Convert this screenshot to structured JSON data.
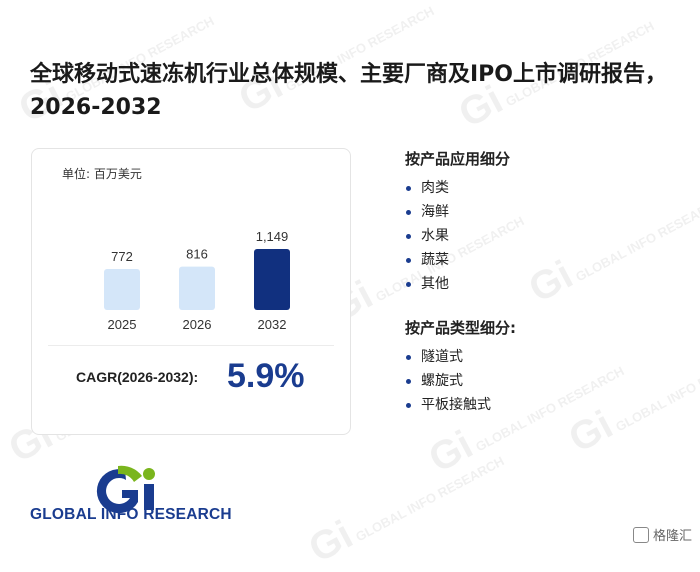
{
  "title": "全球移动式速冻机行业总体规模、主要厂商及IPO上市调研报告，2026-2032",
  "card": {
    "unit": "单位: 百万美元",
    "cagr_label": "CAGR(2026-2032):",
    "cagr_value": "5.9%"
  },
  "chart_data": {
    "type": "bar",
    "categories": [
      "2025",
      "2026",
      "2032"
    ],
    "values": [
      772,
      816,
      1149
    ],
    "value_labels": [
      "772",
      "816",
      "1,149"
    ],
    "highlight_index": 2,
    "colors": {
      "normal": "#d4e6f9",
      "highlight": "#11307f"
    },
    "title": "",
    "xlabel": "",
    "ylabel": ""
  },
  "segments": {
    "application": {
      "heading": "按产品应用细分",
      "items": [
        "肉类",
        "海鲜",
        "水果",
        "蔬菜",
        "其他"
      ]
    },
    "type": {
      "heading": "按产品类型细分:",
      "items": [
        "隧道式",
        "螺旋式",
        "平板接触式"
      ]
    }
  },
  "logo": {
    "text": "GLOBAL INFO RESEARCH",
    "mark": "Gi"
  },
  "corner_badge": "格隆汇",
  "watermark": {
    "text": "GLOBAL INFO RESEARCH"
  },
  "colors": {
    "accent": "#1a3c8f",
    "logo_green": "#7ab51d"
  }
}
